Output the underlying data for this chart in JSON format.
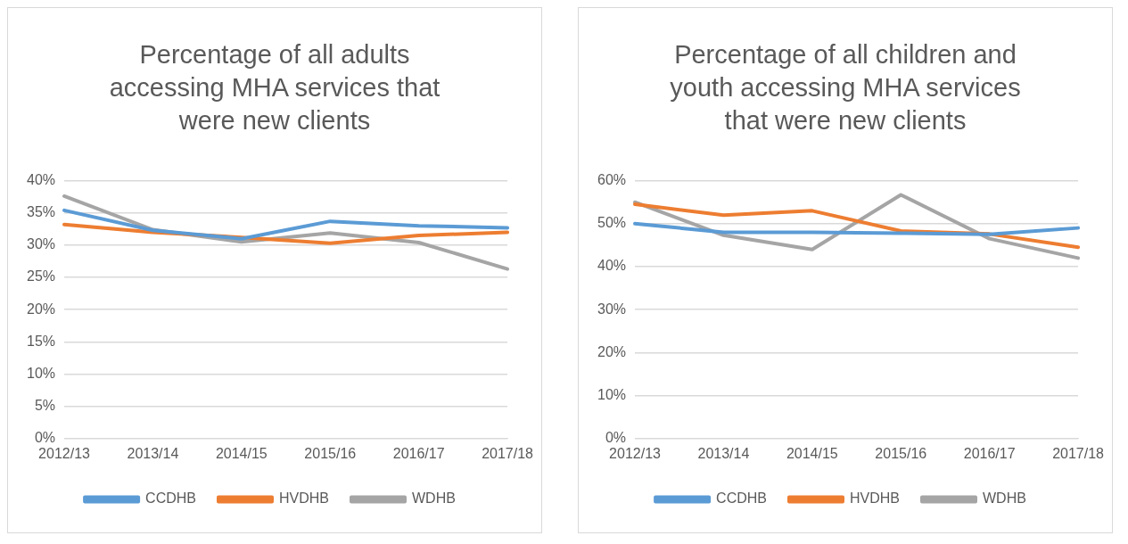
{
  "chart_data": [
    {
      "type": "line",
      "title": "Percentage of all adults accessing MHA services that were new clients",
      "categories": [
        "2012/13",
        "2013/14",
        "2014/15",
        "2015/16",
        "2016/17",
        "2017/18"
      ],
      "series": [
        {
          "name": "CCDHB",
          "color": "#5b9bd5",
          "values": [
            35.4,
            32.3,
            31.0,
            33.7,
            33.0,
            32.7
          ]
        },
        {
          "name": "HVDHB",
          "color": "#ed7d31",
          "values": [
            33.2,
            32.0,
            31.2,
            30.3,
            31.5,
            32.0
          ]
        },
        {
          "name": "WDHB",
          "color": "#a5a5a5",
          "values": [
            37.6,
            32.4,
            30.5,
            31.9,
            30.4,
            26.3
          ]
        }
      ],
      "ylim": [
        0,
        40
      ],
      "yticks": [
        {
          "value": 0,
          "label": "0%"
        },
        {
          "value": 5,
          "label": "5%"
        },
        {
          "value": 10,
          "label": "10%"
        },
        {
          "value": 15,
          "label": "15%"
        },
        {
          "value": 20,
          "label": "20%"
        },
        {
          "value": 25,
          "label": "25%"
        },
        {
          "value": 30,
          "label": "30%"
        },
        {
          "value": 35,
          "label": "35%"
        },
        {
          "value": 40,
          "label": "40%"
        }
      ],
      "grid": "y",
      "legend": "bottom",
      "marker": "none"
    },
    {
      "type": "line",
      "title": "Percentage of all children and youth accessing MHA services that were new clients",
      "categories": [
        "2012/13",
        "2013/14",
        "2014/15",
        "2015/16",
        "2016/17",
        "2017/18"
      ],
      "series": [
        {
          "name": "CCDHB",
          "color": "#5b9bd5",
          "values": [
            50.0,
            48.0,
            48.0,
            47.8,
            47.5,
            49.0
          ]
        },
        {
          "name": "HVDHB",
          "color": "#ed7d31",
          "values": [
            54.5,
            52.0,
            53.0,
            48.3,
            47.6,
            44.5
          ]
        },
        {
          "name": "WDHB",
          "color": "#a5a5a5",
          "values": [
            55.0,
            47.3,
            44.0,
            56.7,
            46.5,
            42.0
          ]
        }
      ],
      "ylim": [
        0,
        60
      ],
      "yticks": [
        {
          "value": 0,
          "label": "0%"
        },
        {
          "value": 10,
          "label": "10%"
        },
        {
          "value": 20,
          "label": "20%"
        },
        {
          "value": 30,
          "label": "30%"
        },
        {
          "value": 40,
          "label": "40%"
        },
        {
          "value": 50,
          "label": "50%"
        },
        {
          "value": 60,
          "label": "60%"
        }
      ],
      "grid": "y",
      "legend": "bottom",
      "marker": "none"
    }
  ]
}
